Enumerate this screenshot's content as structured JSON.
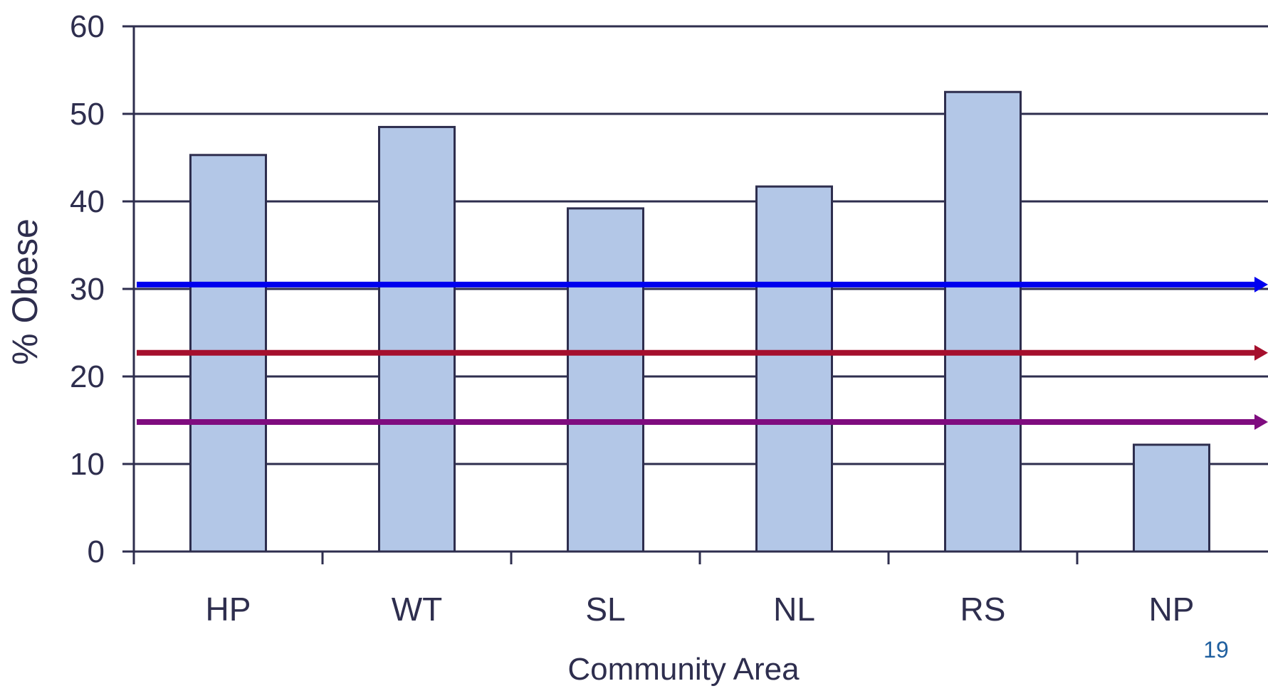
{
  "chart_data": {
    "type": "bar",
    "title": "",
    "xlabel": "Community Area",
    "ylabel": "% Obese",
    "categories": [
      "HP",
      "WT",
      "SL",
      "NL",
      "RS",
      "NP"
    ],
    "series": [
      {
        "values": [
          45.3,
          48.5,
          39.2,
          41.7,
          52.5,
          12.2
        ]
      }
    ],
    "reference_lines": [
      {
        "value": 30.5,
        "color": "#0000ee"
      },
      {
        "value": 22.7,
        "color": "#a50f2d"
      },
      {
        "value": 14.8,
        "color": "#7f0c7f"
      }
    ],
    "ylim": [
      0,
      60
    ],
    "yticks": [
      0,
      10,
      20,
      30,
      40,
      50,
      60
    ],
    "grid": true,
    "legend": "none"
  },
  "colors": {
    "bar_fill": "#b3c7e7",
    "bar_stroke": "#2e2e4e",
    "axis": "#2e2e4e",
    "grid": "#2e2e4e",
    "text": "#2e2e4e",
    "page_number": "#1f5f9f"
  },
  "page_number": "19"
}
